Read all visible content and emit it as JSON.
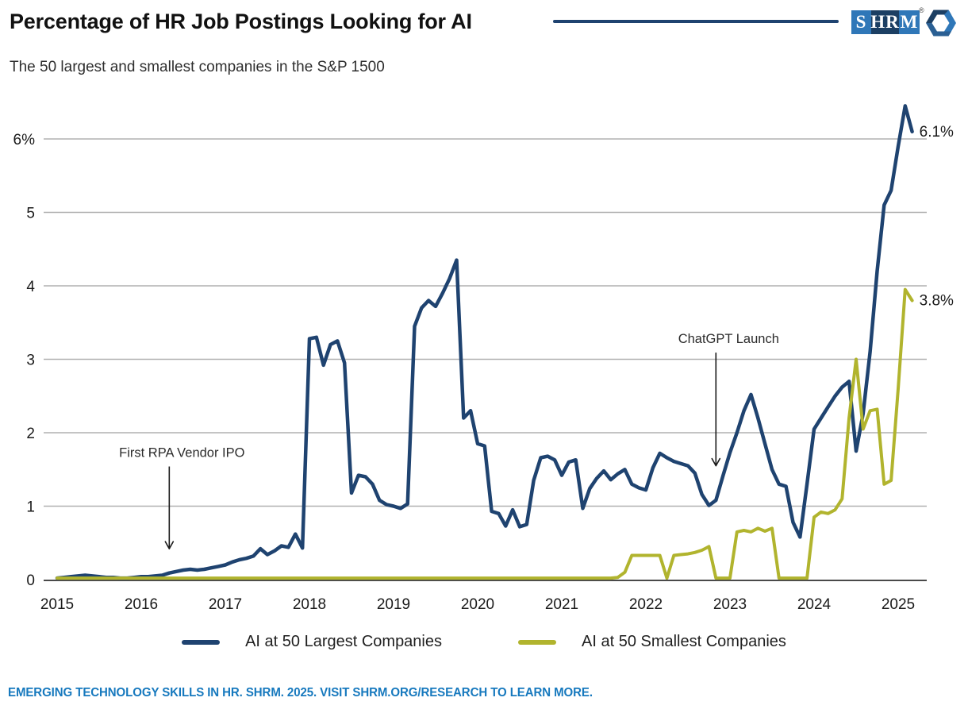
{
  "header": {
    "title": "Percentage of HR Job Postings Looking for AI",
    "subtitle": "The 50 largest and smallest companies in the S&P 1500",
    "logo": {
      "block1": "S",
      "block2": "HR",
      "block3": "M",
      "registered": "®",
      "brand_blue": "#2f77b8",
      "brand_navy": "#1c3f63"
    }
  },
  "chart_data": {
    "type": "line",
    "title": "Percentage of HR Job Postings Looking for AI",
    "subtitle": "The 50 largest and smallest companies in the S&P 1500",
    "x_start": "2015-01",
    "x_end": "2025-03",
    "x_tick_labels": [
      "2015",
      "2016",
      "2017",
      "2018",
      "2019",
      "2020",
      "2021",
      "2022",
      "2023",
      "2024",
      "2025"
    ],
    "y_tick_labels": [
      "0",
      "1",
      "2",
      "3",
      "4",
      "5",
      "6%"
    ],
    "ylim": [
      0,
      6.6
    ],
    "grid": "horizontal",
    "gridline_color": "#b0b0b0",
    "axis_color": "#4a4a4a",
    "legend_position": "bottom",
    "series": [
      {
        "name": "AI at 50 Largest Companies",
        "color": "#1f4370",
        "end_label": "6.1%",
        "values": [
          0.02,
          0.03,
          0.04,
          0.05,
          0.06,
          0.05,
          0.04,
          0.03,
          0.03,
          0.02,
          0.02,
          0.03,
          0.04,
          0.04,
          0.05,
          0.06,
          0.09,
          0.11,
          0.13,
          0.14,
          0.13,
          0.14,
          0.16,
          0.18,
          0.2,
          0.24,
          0.27,
          0.29,
          0.32,
          0.42,
          0.34,
          0.39,
          0.46,
          0.44,
          0.62,
          0.43,
          3.28,
          3.3,
          2.92,
          3.2,
          3.25,
          2.95,
          1.18,
          1.42,
          1.4,
          1.3,
          1.08,
          1.02,
          1.0,
          0.97,
          1.03,
          3.45,
          3.7,
          3.8,
          3.72,
          3.9,
          4.1,
          4.35,
          2.2,
          2.3,
          1.85,
          1.82,
          0.93,
          0.9,
          0.73,
          0.95,
          0.72,
          0.75,
          1.35,
          1.66,
          1.68,
          1.63,
          1.42,
          1.6,
          1.63,
          0.97,
          1.24,
          1.38,
          1.48,
          1.36,
          1.44,
          1.5,
          1.3,
          1.25,
          1.22,
          1.52,
          1.72,
          1.66,
          1.61,
          1.58,
          1.55,
          1.45,
          1.16,
          1.01,
          1.08,
          1.41,
          1.73,
          2.0,
          2.3,
          2.52,
          2.2,
          1.85,
          1.5,
          1.3,
          1.27,
          0.78,
          0.58,
          1.3,
          2.05,
          2.2,
          2.35,
          2.5,
          2.62,
          2.7,
          1.75,
          2.26,
          3.1,
          4.2,
          5.1,
          5.3,
          5.9,
          6.45,
          6.1
        ]
      },
      {
        "name": "AI at 50 Smallest Companies",
        "color": "#b1b42e",
        "end_label": "3.8%",
        "values": [
          0.02,
          0.02,
          0.02,
          0.02,
          0.02,
          0.02,
          0.02,
          0.02,
          0.02,
          0.02,
          0.02,
          0.02,
          0.02,
          0.02,
          0.02,
          0.02,
          0.02,
          0.02,
          0.02,
          0.02,
          0.02,
          0.02,
          0.02,
          0.02,
          0.02,
          0.02,
          0.02,
          0.02,
          0.02,
          0.02,
          0.02,
          0.02,
          0.02,
          0.02,
          0.02,
          0.02,
          0.02,
          0.02,
          0.02,
          0.02,
          0.02,
          0.02,
          0.02,
          0.02,
          0.02,
          0.02,
          0.02,
          0.02,
          0.02,
          0.02,
          0.02,
          0.02,
          0.02,
          0.02,
          0.02,
          0.02,
          0.02,
          0.02,
          0.02,
          0.02,
          0.02,
          0.02,
          0.02,
          0.02,
          0.02,
          0.02,
          0.02,
          0.02,
          0.02,
          0.02,
          0.02,
          0.02,
          0.02,
          0.02,
          0.02,
          0.02,
          0.02,
          0.02,
          0.02,
          0.02,
          0.03,
          0.1,
          0.33,
          0.33,
          0.33,
          0.33,
          0.33,
          0.02,
          0.33,
          0.34,
          0.35,
          0.37,
          0.4,
          0.45,
          0.02,
          0.02,
          0.02,
          0.65,
          0.67,
          0.65,
          0.7,
          0.66,
          0.7,
          0.02,
          0.02,
          0.02,
          0.02,
          0.02,
          0.85,
          0.92,
          0.9,
          0.95,
          1.1,
          2.2,
          3.0,
          2.05,
          2.3,
          2.32,
          1.3,
          1.35,
          2.6,
          3.95,
          3.8
        ]
      }
    ],
    "annotations": [
      {
        "text": "First RPA Vendor IPO",
        "x_month": "2016-05",
        "text_value": 1.67,
        "tip_value": 0.42
      },
      {
        "text": "ChatGPT Launch",
        "x_month": "2022-11",
        "text_value": 3.22,
        "tip_value": 1.55
      }
    ]
  },
  "legend": {
    "items": [
      {
        "label": "AI at 50 Largest Companies",
        "color": "#1f4370"
      },
      {
        "label": "AI at 50 Smallest Companies",
        "color": "#b1b42e"
      }
    ]
  },
  "footer": {
    "text": "EMERGING TECHNOLOGY SKILLS IN HR. SHRM. 2025. VISIT SHRM.ORG/RESEARCH TO LEARN MORE."
  }
}
